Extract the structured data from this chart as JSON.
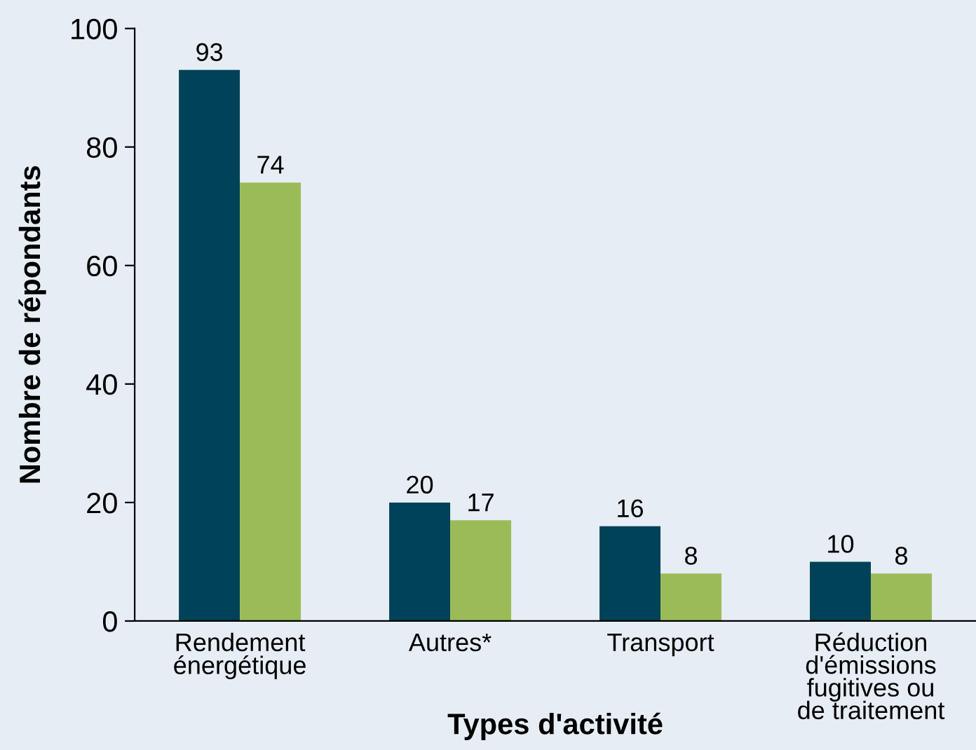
{
  "chart_data": {
    "type": "bar",
    "xlabel": "Types d'activité",
    "ylabel": "Nombre de répondants",
    "categories": [
      "Rendement\nénergétique",
      "Autres*",
      "Transport",
      "Réduction\nd'émissions\nfugitives ou\nde traitement"
    ],
    "series": [
      {
        "color": "#004257",
        "values": [
          93,
          20,
          16,
          10
        ]
      },
      {
        "color": "#9bbb59",
        "values": [
          74,
          17,
          8,
          8
        ]
      }
    ],
    "ylim": [
      0,
      100
    ],
    "yticks": [
      0,
      20,
      40,
      60,
      80,
      100
    ],
    "data_labels": true,
    "grid": false
  }
}
